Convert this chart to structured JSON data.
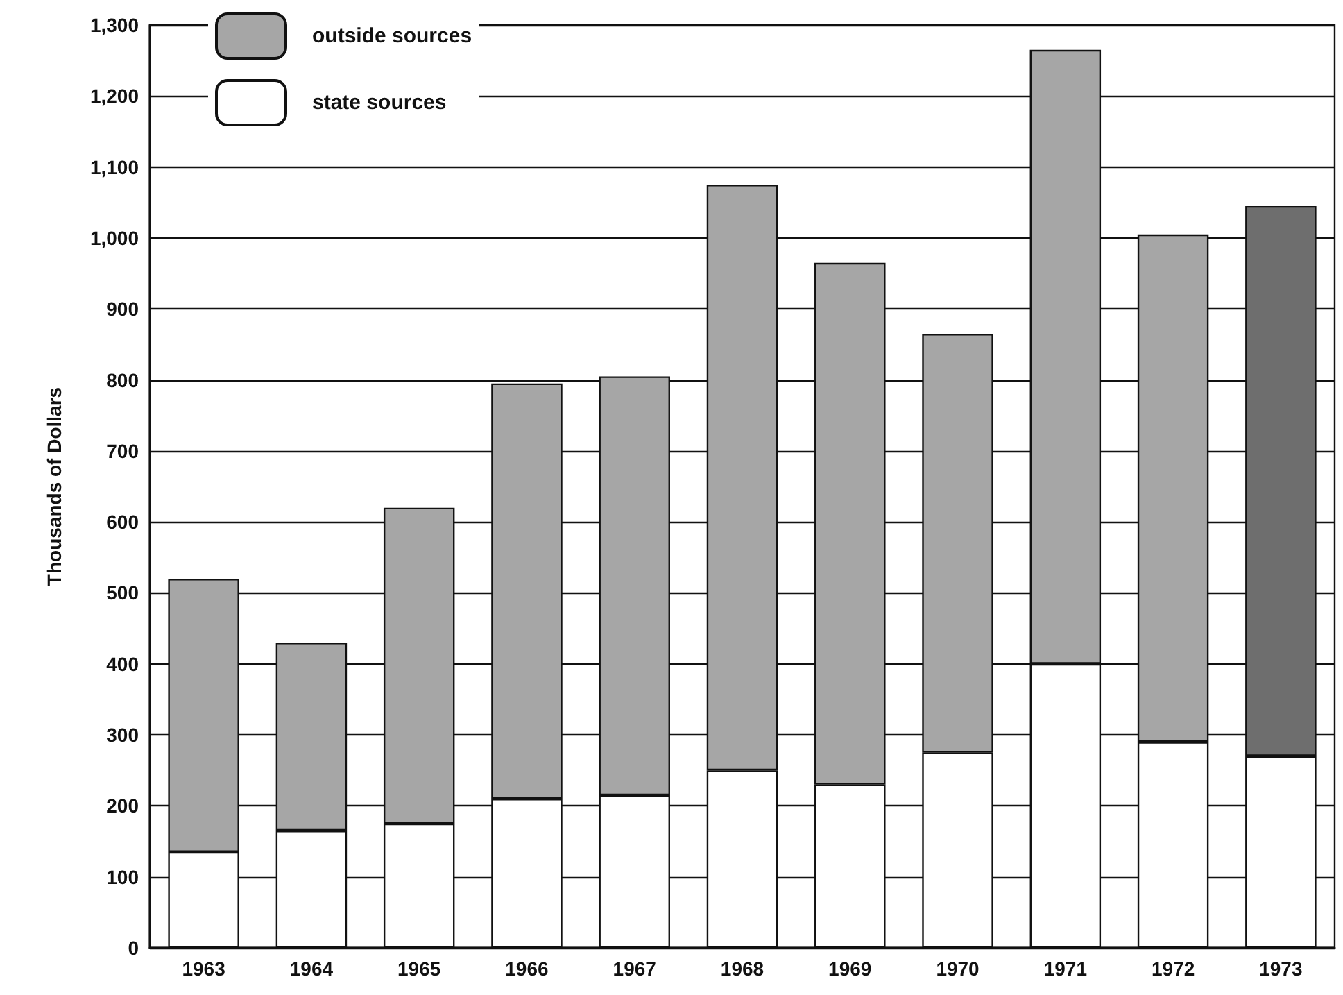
{
  "chart_data": {
    "type": "bar",
    "stacked": true,
    "ylabel": "Thousands of Dollars",
    "categories": [
      "1963",
      "1964",
      "1965",
      "1966",
      "1967",
      "1968",
      "1969",
      "1970",
      "1971",
      "1972",
      "1973"
    ],
    "series": [
      {
        "name": "state sources",
        "color": "#ffffff",
        "values": [
          135,
          165,
          175,
          210,
          215,
          250,
          230,
          275,
          400,
          290,
          270
        ]
      },
      {
        "name": "outside sources",
        "color": "#a6a6a6",
        "colors": [
          "#a6a6a6",
          "#a6a6a6",
          "#a6a6a6",
          "#a6a6a6",
          "#a6a6a6",
          "#a6a6a6",
          "#a6a6a6",
          "#a6a6a6",
          "#a6a6a6",
          "#a6a6a6",
          "#6e6e6e"
        ],
        "values": [
          385,
          265,
          445,
          585,
          590,
          825,
          735,
          590,
          865,
          715,
          775
        ]
      }
    ],
    "ylim": [
      0,
      1300
    ],
    "yticks": [
      0,
      100,
      200,
      300,
      400,
      500,
      600,
      700,
      800,
      900,
      {
        "value": 1000,
        "label": "1,000"
      },
      {
        "value": 1100,
        "label": "1,100"
      },
      {
        "value": 1200,
        "label": "1,200"
      },
      {
        "value": 1300,
        "label": "1,300"
      }
    ],
    "grid": "y",
    "legend": "top left"
  }
}
